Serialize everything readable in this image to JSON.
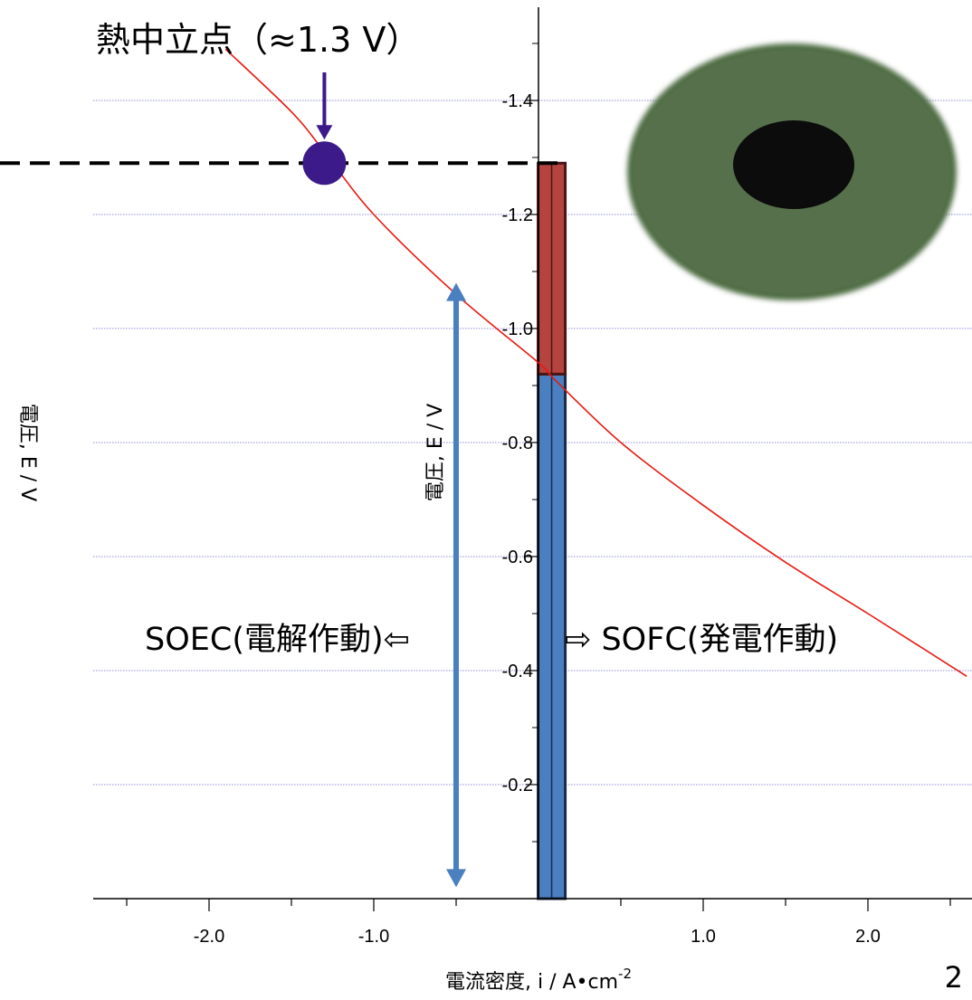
{
  "chart_data": {
    "type": "line",
    "xlabel": "電流密度, i / A•cm",
    "xlabel_superscript": "-2",
    "ylabel": "電圧, E / V",
    "xlim": [
      -2.7,
      2.6
    ],
    "ylim": [
      0.0,
      -1.55
    ],
    "x_ticks": [
      -2.0,
      -1.0,
      1.0,
      2.0
    ],
    "x_tick_labels": [
      "-2.0",
      "-1.0",
      "1.0",
      "2.0"
    ],
    "y_ticks": [
      -0.2,
      -0.4,
      -0.6,
      -0.8,
      -1.0,
      -1.2,
      -1.4
    ],
    "y_tick_labels": [
      "-0.2",
      "-0.4",
      "-0.6",
      "-0.8",
      "-1.0",
      "-1.2",
      "-1.4"
    ],
    "grid": "horizontal dotted",
    "series": [
      {
        "color": "#e8190f",
        "x": [
          -1.9,
          -1.5,
          -1.3,
          -1.0,
          -0.5,
          0.0,
          0.1,
          0.5,
          1.0,
          1.5,
          2.0,
          2.6
        ],
        "y": [
          -1.49,
          -1.38,
          -1.31,
          -1.2,
          -1.06,
          -0.94,
          -0.91,
          -0.8,
          -0.69,
          -0.59,
          -0.5,
          -0.39
        ]
      }
    ],
    "annotations": {
      "thermoneutral_label": "熱中立点（≈1.3 V）",
      "thermoneutral_point": {
        "x": -1.3,
        "y": -1.29
      },
      "thermoneutral_voltage": -1.29,
      "soec_label": "SOEC(電解作動)⇦",
      "sofc_label": "⇨ SOFC(発電作動)",
      "range_arrow_y": [
        -1.08,
        -0.02
      ],
      "range_arrow_x": -0.5,
      "voltage_bar": {
        "x_center": 0.08,
        "blue_to": -0.92,
        "red_to": -1.29
      },
      "bar_inner_label": "電圧, E / V"
    },
    "page_number": "2"
  },
  "colors": {
    "curve": "#e8190f",
    "point": "#3d1a8a",
    "arrow": "#4a7fc0",
    "bar_blue": "#4a7fc0",
    "bar_red": "#b5433f",
    "grid": "#8c8cd8",
    "cell_green": "#4f6d45",
    "cell_hole": "#0c0c0c"
  }
}
